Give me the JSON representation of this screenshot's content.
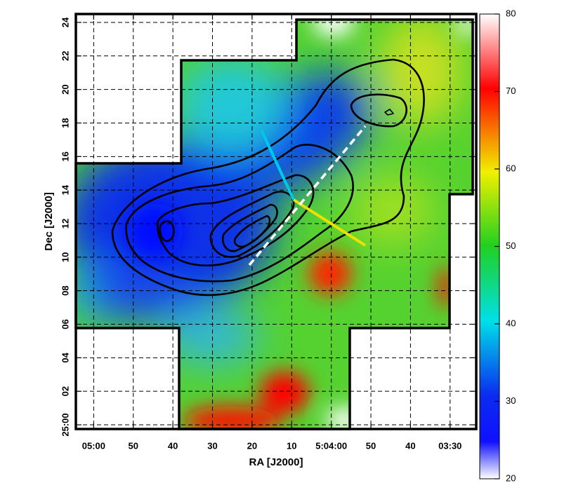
{
  "chart_data": {
    "type": "heatmap",
    "xlabel": "RA [J2000]",
    "ylabel": "Dec [J2000]",
    "xlim": [
      124.5,
      23.4
    ],
    "xticks": [
      {
        "value": 120,
        "label": "05:00"
      },
      {
        "value": 110,
        "label": "50"
      },
      {
        "value": 100,
        "label": "40"
      },
      {
        "value": 90,
        "label": "30"
      },
      {
        "value": 80,
        "label": "20"
      },
      {
        "value": 70,
        "label": "10"
      },
      {
        "value": 60,
        "label": "5:04:00"
      },
      {
        "value": 50,
        "label": "50"
      },
      {
        "value": 40,
        "label": "40"
      },
      {
        "value": 30,
        "label": "03:30"
      }
    ],
    "ylim": [
      -0.25,
      24.5
    ],
    "yticks": [
      {
        "value": 0,
        "label": "25:00"
      },
      {
        "value": 2,
        "label": "02"
      },
      {
        "value": 4,
        "label": "04"
      },
      {
        "value": 6,
        "label": "06"
      },
      {
        "value": 8,
        "label": "08"
      },
      10,
      12,
      14,
      16,
      18,
      20,
      22,
      24
    ],
    "colorbar": {
      "lim": [
        20,
        80
      ],
      "ticks": [
        20,
        30,
        40,
        50,
        60,
        70,
        80
      ]
    }
  }
}
